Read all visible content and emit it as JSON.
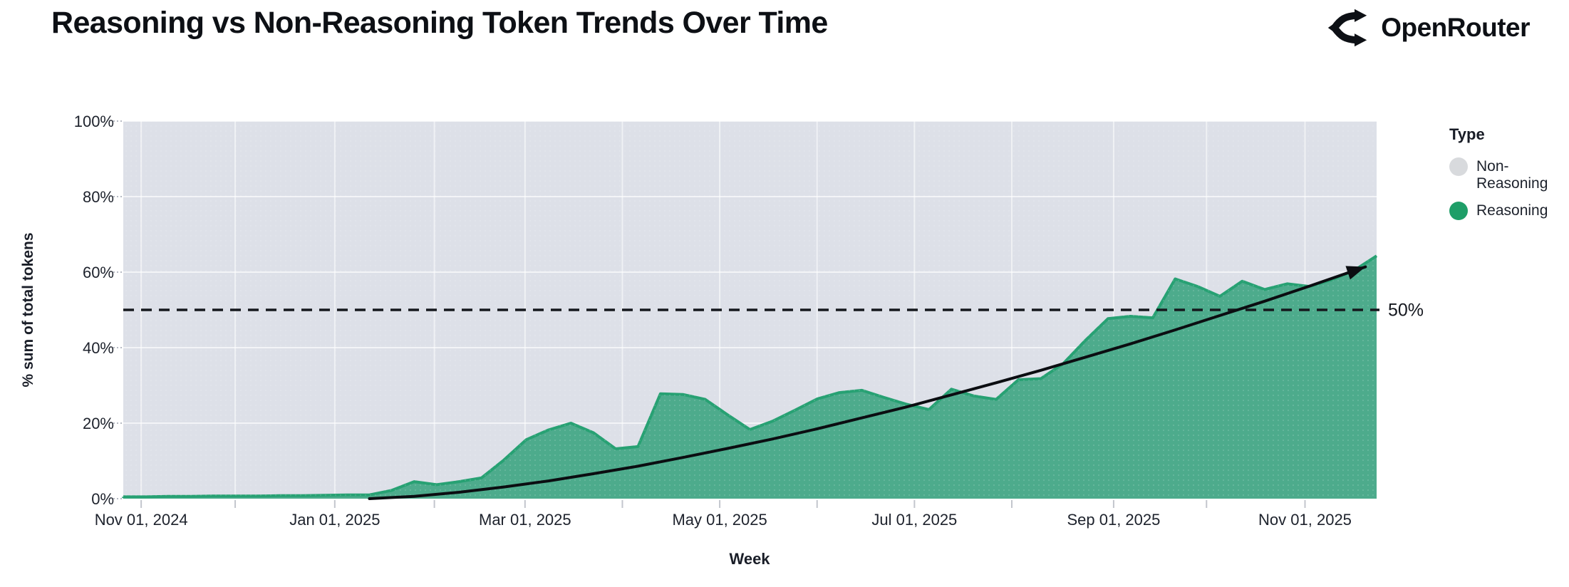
{
  "header": {
    "title": "Reasoning vs Non-Reasoning Token Trends Over Time",
    "brand": "OpenRouter"
  },
  "legend": {
    "title": "Type",
    "items": [
      {
        "label": "Non-Reasoning",
        "color": "#d8dadd"
      },
      {
        "label": "Reasoning",
        "color": "#1f9e68"
      }
    ]
  },
  "axes": {
    "y_title": "% sum of total tokens",
    "x_title": "Week",
    "y_ticks": [
      {
        "label": "0%",
        "value": 0
      },
      {
        "label": "20%",
        "value": 20
      },
      {
        "label": "40%",
        "value": 40
      },
      {
        "label": "60%",
        "value": 60
      },
      {
        "label": "80%",
        "value": 80
      },
      {
        "label": "100%",
        "value": 100
      }
    ],
    "x_ticks_major": [
      {
        "label": "Nov 01, 2024",
        "week": 0.8
      },
      {
        "label": "Jan 01, 2025",
        "week": 9.45
      },
      {
        "label": "Mar 01, 2025",
        "week": 17.95
      },
      {
        "label": "May 01, 2025",
        "week": 26.65
      },
      {
        "label": "Jul 01, 2025",
        "week": 35.35
      },
      {
        "label": "Sep 01, 2025",
        "week": 44.25
      },
      {
        "label": "Nov 01, 2025",
        "week": 52.8
      }
    ],
    "x_ticks_minor_weeks": [
      5.0,
      13.9,
      22.3,
      31.0,
      39.7,
      48.4
    ]
  },
  "chart_data": {
    "type": "area",
    "mode": "100%-stacked",
    "title": "Reasoning vs Non-Reasoning Token Trends Over Time",
    "xlabel": "Week",
    "ylabel": "% sum of total tokens",
    "ylim": [
      0,
      100
    ],
    "grid": true,
    "legend_position": "right",
    "plot_background": "#dde0e8",
    "x": [
      "2024-10-28",
      "2024-11-04",
      "2024-11-11",
      "2024-11-18",
      "2024-11-25",
      "2024-12-02",
      "2024-12-09",
      "2024-12-16",
      "2024-12-23",
      "2024-12-30",
      "2025-01-06",
      "2025-01-13",
      "2025-01-20",
      "2025-01-27",
      "2025-02-03",
      "2025-02-10",
      "2025-02-17",
      "2025-02-24",
      "2025-03-03",
      "2025-03-10",
      "2025-03-17",
      "2025-03-24",
      "2025-03-31",
      "2025-04-07",
      "2025-04-14",
      "2025-04-21",
      "2025-04-28",
      "2025-05-05",
      "2025-05-12",
      "2025-05-19",
      "2025-05-26",
      "2025-06-02",
      "2025-06-09",
      "2025-06-16",
      "2025-06-23",
      "2025-06-30",
      "2025-07-07",
      "2025-07-14",
      "2025-07-21",
      "2025-07-28",
      "2025-08-04",
      "2025-08-11",
      "2025-08-18",
      "2025-08-25",
      "2025-09-01",
      "2025-09-08",
      "2025-09-15",
      "2025-09-22",
      "2025-09-29",
      "2025-10-06",
      "2025-10-13",
      "2025-10-20",
      "2025-10-27",
      "2025-11-03",
      "2025-11-10",
      "2025-11-17",
      "2025-11-24"
    ],
    "series": [
      {
        "name": "Reasoning",
        "fill_color": "#4dab8c",
        "stroke_color": "#27a173",
        "values": [
          0.5,
          0.5,
          0.6,
          0.6,
          0.7,
          0.7,
          0.7,
          0.8,
          0.8,
          0.9,
          1.0,
          1.0,
          2.2,
          4.5,
          3.7,
          4.5,
          5.5,
          10.2,
          15.6,
          18.2,
          20.0,
          17.5,
          13.2,
          13.8,
          27.8,
          27.6,
          26.3,
          22.2,
          18.3,
          20.5,
          23.4,
          26.4,
          28.1,
          28.7,
          26.8,
          25.0,
          23.6,
          29.0,
          27.2,
          26.3,
          31.5,
          31.8,
          35.8,
          42.0,
          47.7,
          48.3,
          47.9,
          58.2,
          56.2,
          53.6,
          57.6,
          55.4,
          56.9,
          56.2,
          58.0,
          60.5,
          64.3
        ]
      },
      {
        "name": "Non-Reasoning",
        "fill_color": "#dde0e8",
        "note": "complement of Reasoning in 100% stack",
        "values": [
          99.5,
          99.5,
          99.4,
          99.4,
          99.3,
          99.3,
          99.3,
          99.2,
          99.2,
          99.1,
          99.0,
          99.0,
          97.8,
          95.5,
          96.3,
          95.5,
          94.5,
          89.8,
          84.4,
          81.8,
          80.0,
          82.5,
          86.8,
          86.2,
          72.2,
          72.4,
          73.7,
          77.8,
          81.7,
          79.5,
          76.6,
          73.6,
          71.9,
          71.3,
          73.2,
          75.0,
          76.4,
          71.0,
          72.8,
          73.7,
          68.5,
          68.2,
          64.2,
          58.0,
          52.3,
          51.7,
          52.1,
          41.8,
          43.8,
          46.4,
          42.4,
          44.6,
          43.1,
          43.8,
          42.0,
          39.5,
          35.7
        ]
      }
    ],
    "reference_line": {
      "value": 50,
      "label": "50%",
      "style": "dashed-black"
    },
    "trend_arrow": {
      "style": "solid black curve with arrowhead",
      "points_week_pct": [
        [
          11,
          0
        ],
        [
          13,
          0.6
        ],
        [
          15,
          1.7
        ],
        [
          17,
          3.1
        ],
        [
          19,
          4.7
        ],
        [
          21,
          6.6
        ],
        [
          23,
          8.6
        ],
        [
          25,
          10.9
        ],
        [
          27,
          13.3
        ],
        [
          29,
          15.8
        ],
        [
          31,
          18.5
        ],
        [
          33,
          21.4
        ],
        [
          35,
          24.3
        ],
        [
          37,
          27.5
        ],
        [
          39,
          30.7
        ],
        [
          41,
          34.0
        ],
        [
          43,
          37.5
        ],
        [
          45,
          41.0
        ],
        [
          47,
          44.7
        ],
        [
          49,
          48.5
        ],
        [
          51,
          52.3
        ],
        [
          53,
          56.3
        ],
        [
          55,
          60.4
        ],
        [
          55.5,
          61.4
        ]
      ]
    }
  }
}
